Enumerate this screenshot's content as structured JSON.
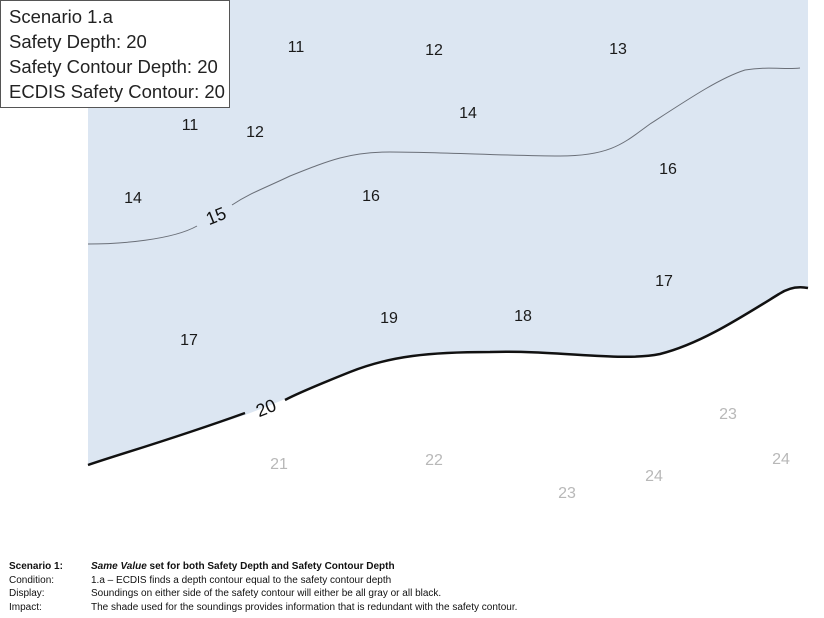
{
  "legend": {
    "scenario": "Scenario 1.a",
    "safety_depth": "Safety Depth: 20",
    "safety_contour_depth": "Safety Contour Depth: 20",
    "ecdis_safety_contour": "ECDIS Safety Contour: 20"
  },
  "contours": {
    "c15": "15",
    "c20": "20"
  },
  "soundings": {
    "s1": "11",
    "s2": "12",
    "s3": "13",
    "s4": "11",
    "s5": "12",
    "s6": "14",
    "s7": "14",
    "s8": "16",
    "s9": "16",
    "s10": "17",
    "s11": "17",
    "s12": "19",
    "s13": "18",
    "s14": "23",
    "s15": "21",
    "s16": "22",
    "s17": "23",
    "s18": "24",
    "s19": "24"
  },
  "colors": {
    "shallow_fill": "#dce6f2",
    "deep_fill": "#ffffff",
    "black_sounding": "#1a1a1a",
    "gray_sounding": "#b8b8b8"
  },
  "caption": {
    "row1_key": "Scenario 1:",
    "row1_val_italic": "Same Value",
    "row1_val_rest": " set for both Safety Depth and Safety Contour Depth",
    "row2_key": "Condition:",
    "row2_val": "1.a – ECDIS finds a depth contour equal to the safety contour depth",
    "row3_key": "Display:",
    "row3_val": "Soundings on either side of the safety contour will either be all gray or all black.",
    "row4_key": "Impact:",
    "row4_val": "The shade used for the soundings provides information that is redundant with the safety contour."
  }
}
